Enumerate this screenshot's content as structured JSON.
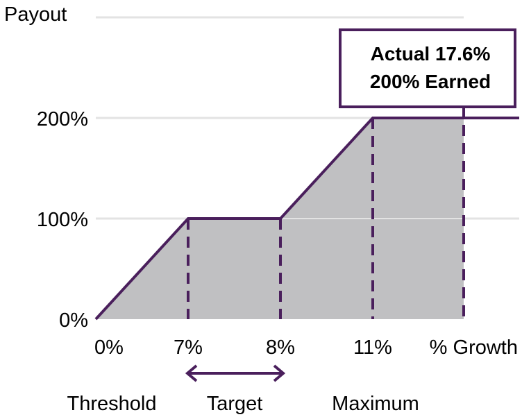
{
  "chart_data": {
    "type": "area",
    "ylabel": "Payout",
    "xlabel": "% Growth",
    "x_ticks": [
      "0%",
      "7%",
      "8%",
      "11%"
    ],
    "y_ticks": [
      "0%",
      "100%",
      "200%"
    ],
    "points": [
      {
        "growth": 0,
        "payout": 0
      },
      {
        "growth": 7,
        "payout": 100
      },
      {
        "growth": 8,
        "payout": 100
      },
      {
        "growth": 11,
        "payout": 200
      },
      {
        "growth": 17.6,
        "payout": 200
      }
    ],
    "reference_lines": [
      7,
      8,
      11,
      17.6
    ],
    "zones": [
      {
        "label": "Threshold"
      },
      {
        "label": "Target"
      },
      {
        "label": "Maximum"
      }
    ],
    "callout": {
      "line1": "Actual 17.6%",
      "line2": "200% Earned"
    },
    "colors": {
      "line": "#4a1f5c",
      "fill": "#c0c0c2",
      "grid": "#e3e3e3",
      "text": "#000000"
    }
  }
}
